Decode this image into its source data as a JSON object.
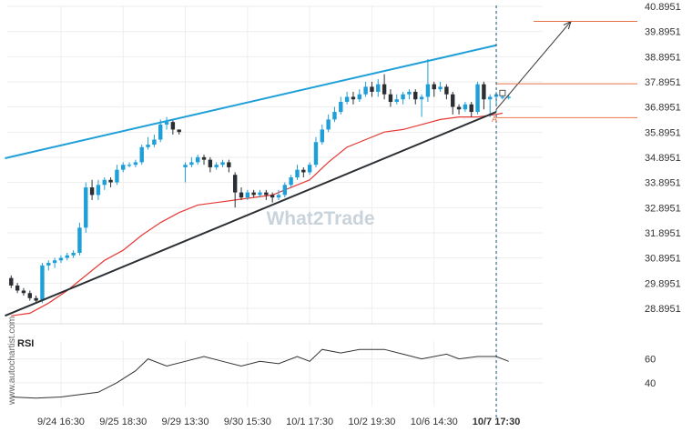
{
  "chart_data": {
    "type": "candlestick",
    "y_ticks": [
      "40.8951",
      "39.8951",
      "38.8951",
      "37.8951",
      "36.8951",
      "35.8951",
      "34.8951",
      "33.8951",
      "32.8951",
      "31.8951",
      "30.8951",
      "29.8951",
      "28.8951"
    ],
    "ylim": [
      28.2,
      41.0
    ],
    "x_ticks": [
      {
        "label": "9/24 16:30",
        "idx": 8
      },
      {
        "label": "9/25 18:30",
        "idx": 18
      },
      {
        "label": "9/29 13:30",
        "idx": 28
      },
      {
        "label": "9/30 15:30",
        "idx": 38
      },
      {
        "label": "10/1 17:30",
        "idx": 48
      },
      {
        "label": "10/2 19:30",
        "idx": 58
      },
      {
        "label": "10/6 14:30",
        "idx": 68
      },
      {
        "label": "10/7 17:30",
        "idx": 78,
        "bold": true
      }
    ],
    "candles": [
      [
        30.1,
        29.8,
        30.2,
        29.7
      ],
      [
        29.8,
        29.6,
        29.9,
        29.5
      ],
      [
        29.6,
        29.5,
        29.7,
        29.4
      ],
      [
        29.5,
        29.3,
        29.6,
        29.2
      ],
      [
        29.3,
        29.2,
        29.4,
        29.1
      ],
      [
        29.2,
        30.6,
        30.7,
        29.1
      ],
      [
        30.6,
        30.7,
        30.8,
        30.4
      ],
      [
        30.7,
        30.8,
        30.9,
        30.5
      ],
      [
        30.8,
        30.9,
        31.0,
        30.7
      ],
      [
        30.9,
        31.0,
        31.1,
        30.8
      ],
      [
        31.0,
        31.1,
        31.2,
        30.9
      ],
      [
        31.1,
        32.1,
        32.3,
        31.0
      ],
      [
        32.1,
        33.7,
        33.9,
        31.9
      ],
      [
        33.7,
        33.4,
        34.0,
        33.2
      ],
      [
        33.4,
        33.8,
        34.0,
        33.2
      ],
      [
        33.8,
        34.0,
        34.1,
        33.6
      ],
      [
        34.0,
        33.9,
        34.1,
        33.7
      ],
      [
        33.9,
        34.4,
        34.6,
        33.8
      ],
      [
        34.4,
        34.6,
        34.7,
        34.3
      ],
      [
        34.6,
        34.6,
        34.7,
        34.5
      ],
      [
        34.6,
        34.7,
        34.8,
        34.5
      ],
      [
        34.7,
        35.3,
        35.4,
        34.6
      ],
      [
        35.3,
        35.4,
        35.7,
        35.2
      ],
      [
        35.4,
        35.6,
        35.8,
        35.3
      ],
      [
        35.6,
        36.2,
        36.4,
        35.5
      ],
      [
        36.2,
        36.3,
        36.5,
        36.0
      ],
      [
        36.3,
        36.0,
        36.4,
        35.8
      ],
      [
        36.0,
        35.9,
        36.0,
        35.8
      ],
      [
        34.5,
        34.6,
        34.7,
        33.9
      ],
      [
        34.6,
        34.7,
        34.9,
        34.5
      ],
      [
        34.7,
        34.9,
        35.0,
        34.6
      ],
      [
        34.9,
        34.8,
        35.0,
        34.6
      ],
      [
        34.8,
        34.5,
        34.9,
        34.3
      ],
      [
        34.5,
        34.6,
        34.7,
        34.4
      ],
      [
        34.6,
        34.7,
        34.8,
        34.5
      ],
      [
        34.7,
        34.5,
        34.8,
        34.3
      ],
      [
        34.2,
        33.5,
        34.3,
        32.9
      ],
      [
        33.5,
        33.3,
        33.7,
        33.2
      ],
      [
        33.3,
        33.5,
        33.6,
        33.2
      ],
      [
        33.5,
        33.4,
        33.6,
        33.3
      ],
      [
        33.4,
        33.5,
        33.6,
        33.3
      ],
      [
        33.5,
        33.4,
        33.6,
        33.2
      ],
      [
        33.4,
        33.3,
        33.5,
        33.1
      ],
      [
        33.3,
        33.4,
        33.6,
        33.2
      ],
      [
        33.4,
        33.8,
        33.9,
        33.3
      ],
      [
        33.8,
        34.1,
        34.2,
        33.7
      ],
      [
        34.1,
        34.4,
        34.6,
        34.0
      ],
      [
        34.4,
        34.3,
        34.5,
        34.1
      ],
      [
        34.3,
        34.6,
        34.7,
        34.2
      ],
      [
        34.6,
        35.5,
        35.7,
        34.5
      ],
      [
        35.5,
        36.0,
        36.2,
        35.4
      ],
      [
        36.0,
        36.4,
        36.6,
        35.9
      ],
      [
        36.4,
        36.7,
        36.9,
        36.3
      ],
      [
        36.7,
        37.1,
        37.3,
        36.6
      ],
      [
        37.1,
        37.3,
        37.5,
        37.0
      ],
      [
        37.3,
        37.2,
        37.5,
        37.0
      ],
      [
        37.2,
        37.4,
        37.6,
        37.1
      ],
      [
        37.4,
        37.7,
        37.9,
        37.3
      ],
      [
        37.7,
        37.5,
        37.9,
        37.3
      ],
      [
        37.5,
        37.8,
        38.0,
        37.3
      ],
      [
        37.8,
        37.4,
        38.2,
        37.2
      ],
      [
        37.4,
        37.1,
        37.6,
        36.9
      ],
      [
        37.1,
        37.2,
        37.4,
        37.0
      ],
      [
        37.2,
        37.4,
        37.5,
        37.0
      ],
      [
        37.4,
        37.5,
        37.6,
        37.2
      ],
      [
        37.5,
        37.2,
        37.6,
        37.0
      ],
      [
        37.2,
        37.3,
        37.4,
        36.5
      ],
      [
        37.3,
        37.8,
        38.8,
        37.1
      ],
      [
        37.8,
        37.6,
        37.9,
        37.3
      ],
      [
        37.6,
        37.7,
        37.9,
        37.5
      ],
      [
        37.7,
        37.4,
        37.8,
        37.2
      ],
      [
        37.4,
        36.9,
        37.5,
        36.6
      ],
      [
        36.9,
        36.8,
        37.0,
        36.6
      ],
      [
        36.8,
        37.0,
        37.1,
        36.7
      ],
      [
        37.0,
        36.7,
        37.1,
        36.5
      ],
      [
        36.7,
        37.8,
        37.9,
        36.6
      ],
      [
        37.8,
        37.2,
        37.9,
        36.8
      ],
      [
        37.2,
        37.3,
        37.4,
        36.5
      ],
      [
        37.3,
        37.4,
        37.5,
        37.0
      ],
      [
        37.3,
        37.3,
        37.4,
        37.2
      ],
      [
        37.3,
        37.3,
        37.4,
        37.2
      ]
    ],
    "moving_average": [
      [
        0,
        28.6
      ],
      [
        3,
        28.7
      ],
      [
        6,
        29.1
      ],
      [
        9,
        29.6
      ],
      [
        12,
        30.2
      ],
      [
        15,
        30.8
      ],
      [
        18,
        31.2
      ],
      [
        21,
        31.8
      ],
      [
        24,
        32.3
      ],
      [
        27,
        32.7
      ],
      [
        30,
        33.0
      ],
      [
        33,
        33.1
      ],
      [
        36,
        33.2
      ],
      [
        39,
        33.3
      ],
      [
        42,
        33.4
      ],
      [
        45,
        33.7
      ],
      [
        48,
        34.0
      ],
      [
        51,
        34.7
      ],
      [
        54,
        35.3
      ],
      [
        57,
        35.6
      ],
      [
        60,
        35.9
      ],
      [
        63,
        36.0
      ],
      [
        66,
        36.2
      ],
      [
        69,
        36.4
      ],
      [
        72,
        36.5
      ],
      [
        75,
        36.5
      ],
      [
        78,
        36.6
      ],
      [
        79,
        36.65
      ]
    ],
    "channel_upper": [
      [
        -1,
        34.86
      ],
      [
        78,
        39.35
      ]
    ],
    "channel_lower": [
      [
        -1,
        28.6
      ],
      [
        78,
        36.7
      ]
    ],
    "projection_arrow": [
      [
        78,
        36.8
      ],
      [
        90,
        40.3
      ]
    ],
    "orange_levels": [
      40.3,
      37.82,
      36.47
    ],
    "rsi": {
      "label": "RSI",
      "ticks": [
        "60",
        "40"
      ],
      "ylim": [
        20,
        75
      ],
      "values": [
        [
          0,
          28
        ],
        [
          4,
          27
        ],
        [
          8,
          28
        ],
        [
          11,
          30
        ],
        [
          14,
          32
        ],
        [
          17,
          40
        ],
        [
          20,
          50
        ],
        [
          22,
          60
        ],
        [
          25,
          54
        ],
        [
          28,
          58
        ],
        [
          31,
          62
        ],
        [
          34,
          58
        ],
        [
          37,
          54
        ],
        [
          40,
          58
        ],
        [
          43,
          56
        ],
        [
          46,
          62
        ],
        [
          48,
          58
        ],
        [
          50,
          68
        ],
        [
          53,
          65
        ],
        [
          56,
          68
        ],
        [
          60,
          68
        ],
        [
          63,
          64
        ],
        [
          66,
          60
        ],
        [
          70,
          64
        ],
        [
          72,
          60
        ],
        [
          75,
          62
        ],
        [
          78,
          62
        ],
        [
          80,
          58
        ]
      ]
    },
    "point_marker": "A",
    "watermark": "What2Trade",
    "side_watermark": "www.autochartist.com"
  }
}
